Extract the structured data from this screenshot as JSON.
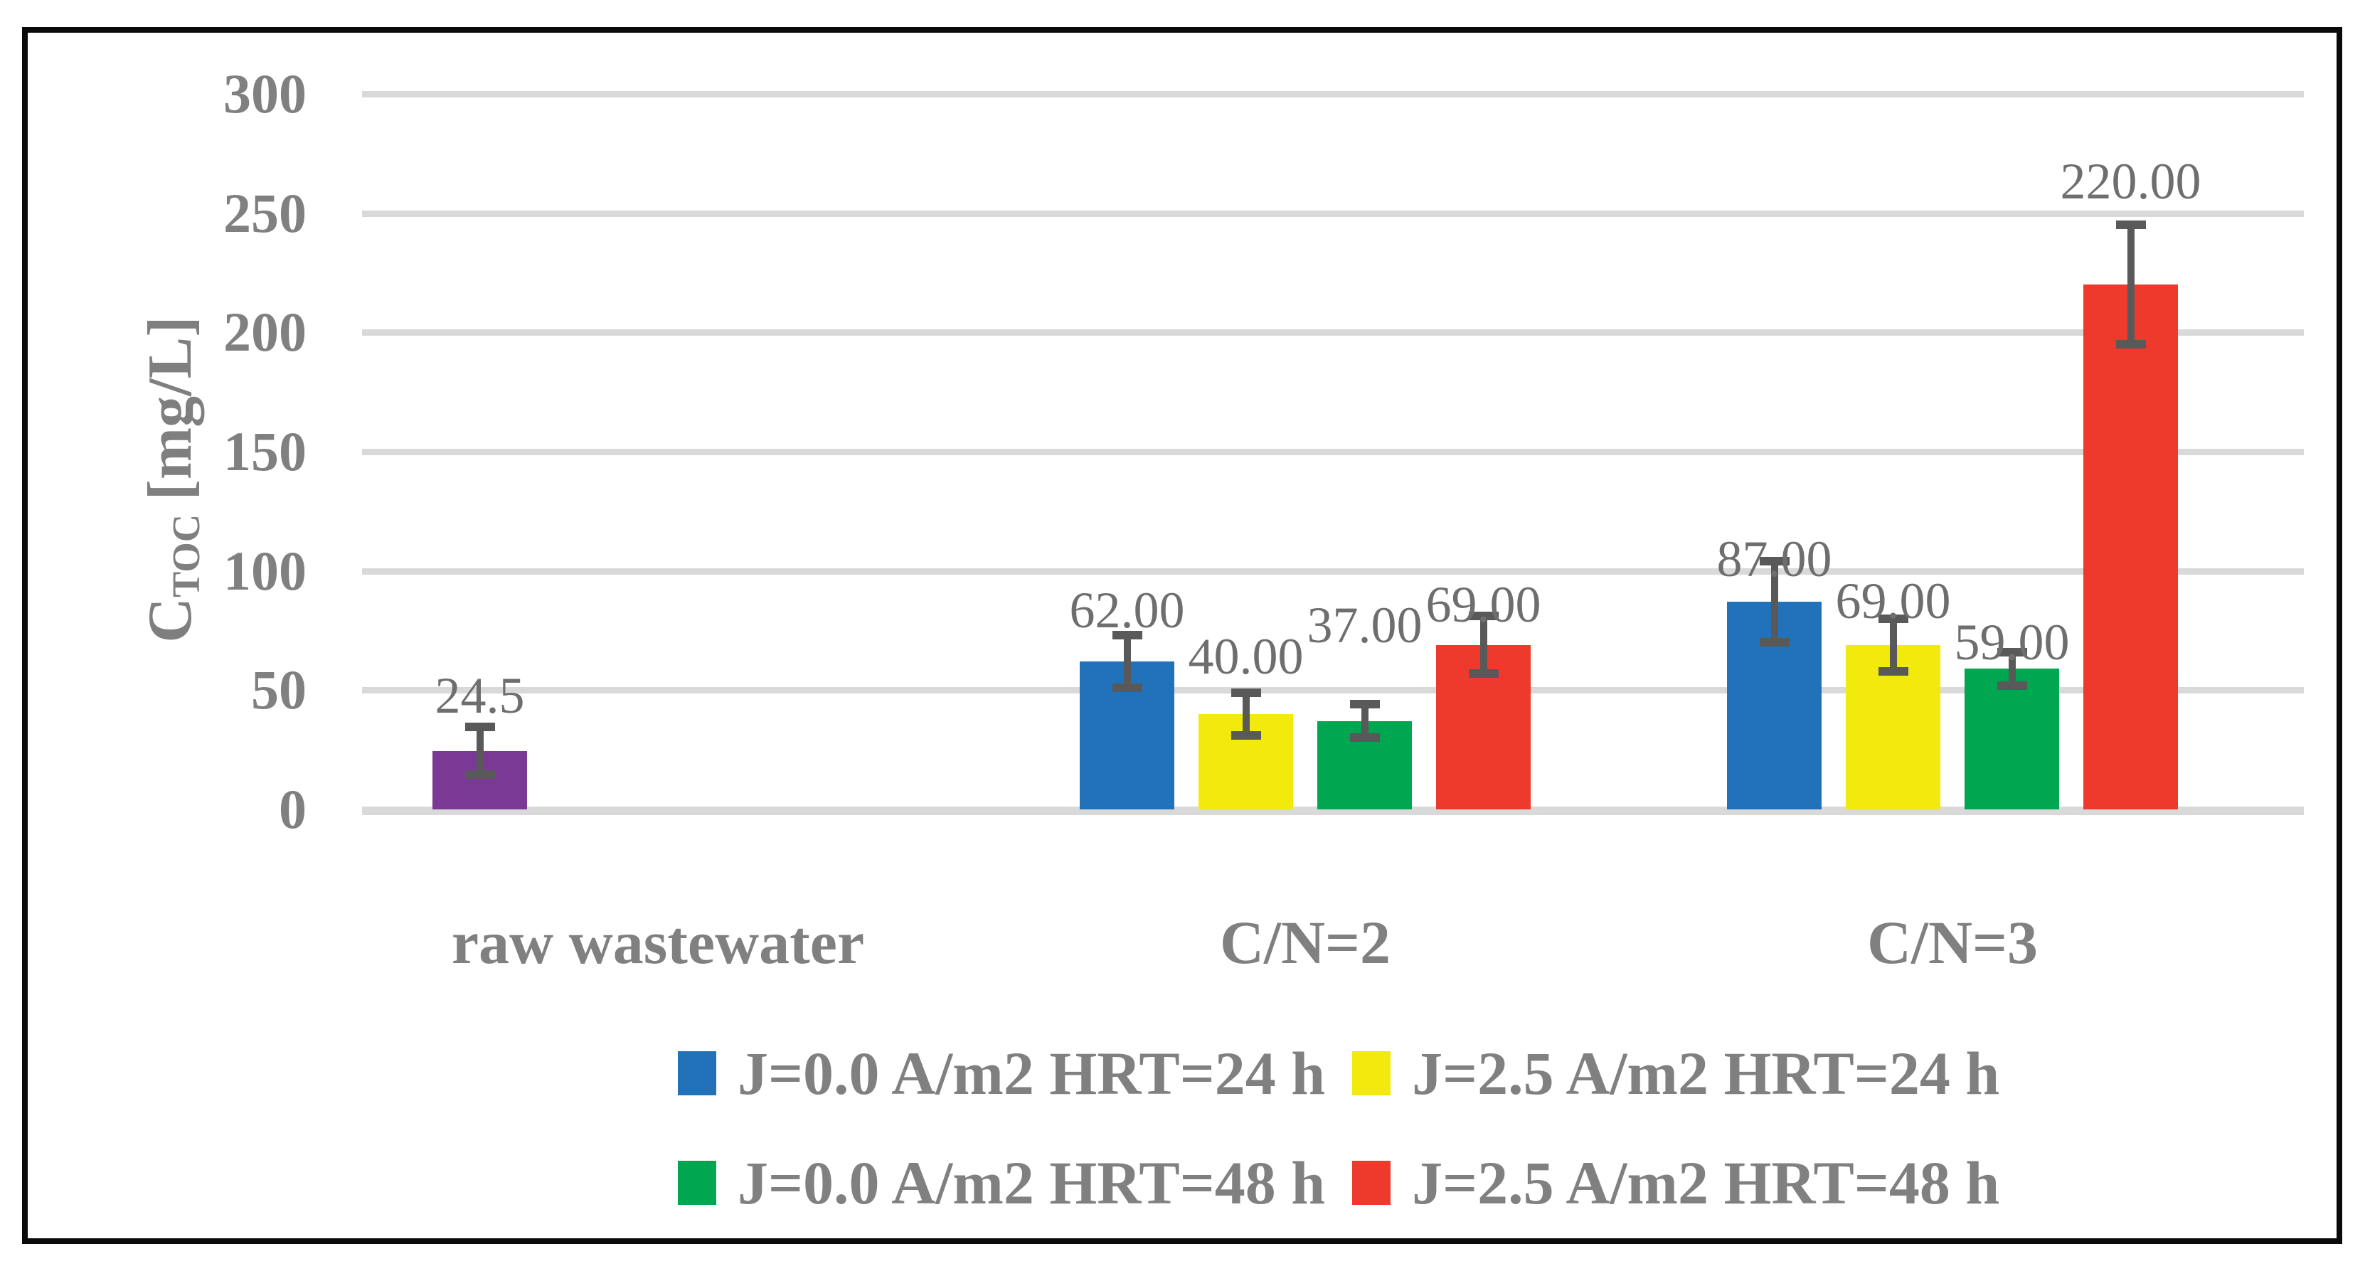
{
  "chart_data": {
    "type": "bar",
    "title": "",
    "y_axis": {
      "label_main": "C",
      "label_subscript": "TOC",
      "label_units": "[mg/L]",
      "min": 0,
      "max": 300,
      "tick_step": 50,
      "ticks": [
        "0",
        "50",
        "100",
        "150",
        "200",
        "250",
        "300"
      ],
      "grid": true
    },
    "categories": [
      "raw wastewater",
      "C/N=2",
      "C/N=3"
    ],
    "groups": [
      {
        "label": "raw wastewater",
        "bars": [
          {
            "series": "raw wastewater",
            "color": "#7B3996",
            "value": 24.5,
            "error": 10,
            "data_label": "24.5",
            "slot": 0
          }
        ]
      },
      {
        "label": "C/N=2",
        "bars": [
          {
            "series": "J=0.0 A/m2 HRT=24 h",
            "color": "#2272B9",
            "value": 62,
            "error": 11,
            "data_label": "62.00",
            "slot": 0
          },
          {
            "series": "J=2.5 A/m2 HRT=24 h",
            "color": "#F2EA0D",
            "value": 40,
            "error": 9,
            "data_label": "40.00",
            "slot": 1
          },
          {
            "series": "J=0.0 A/m2 HRT=48 h",
            "color": "#00A650",
            "value": 37,
            "error": 7,
            "data_label": "37.00",
            "slot": 2
          },
          {
            "series": "J=2.5 A/m2 HRT=48 h",
            "color": "#EE3A2C",
            "value": 69,
            "error": 12,
            "data_label": "69.00",
            "slot": 3
          }
        ]
      },
      {
        "label": "C/N=3",
        "bars": [
          {
            "series": "J=0.0 A/m2 HRT=24 h",
            "color": "#2272B9",
            "value": 87,
            "error": 17,
            "data_label": "87.00",
            "slot": 0
          },
          {
            "series": "J=2.5 A/m2 HRT=24 h",
            "color": "#F2EA0D",
            "value": 69,
            "error": 11,
            "data_label": "69.00",
            "slot": 1
          },
          {
            "series": "J=0.0 A/m2 HRT=48 h",
            "color": "#00A650",
            "value": 59,
            "error": 7,
            "data_label": "59.00",
            "slot": 2
          },
          {
            "series": "J=2.5 A/m2 HRT=48 h",
            "color": "#EE3A2C",
            "value": 220,
            "error": 25,
            "data_label": "220.00",
            "slot": 3
          }
        ]
      }
    ],
    "legend": {
      "position": "bottom",
      "rows": [
        [
          {
            "label": "J=0.0 A/m2 HRT=24 h",
            "color": "#2272B9"
          },
          {
            "label": "J=2.5 A/m2 HRT=24 h",
            "color": "#F2EA0D"
          }
        ],
        [
          {
            "label": "J=0.0 A/m2 HRT=48 h",
            "color": "#00A650"
          },
          {
            "label": "J=2.5 A/m2 HRT=48 h",
            "color": "#EE3A2C"
          }
        ]
      ]
    },
    "colors": {
      "grid": "#D9D9D9",
      "error_bar": "#595959",
      "axis_text": "#808080",
      "data_label_text": "#6E6E6E",
      "frame_border": "#0A0A0A",
      "background": "#FFFFFF"
    }
  }
}
